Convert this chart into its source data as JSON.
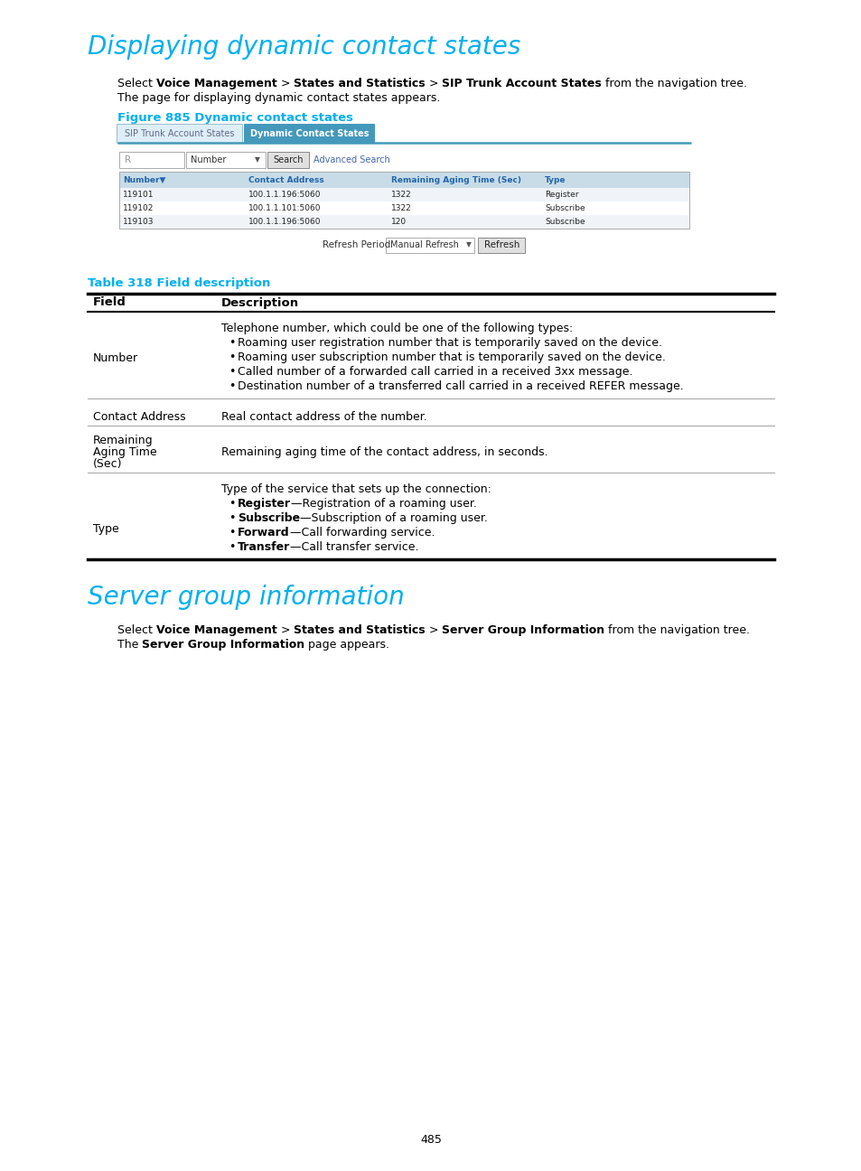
{
  "page_background": "#ffffff",
  "heading1_color": "#00b0f0",
  "heading1_text": "Displaying dynamic contact states",
  "heading1_fontsize": 20,
  "heading2_color": "#00b0f0",
  "heading2_text": "Server group information",
  "heading2_fontsize": 20,
  "figure_label_color": "#00b0f0",
  "figure_label_text": "Figure 885 Dynamic contact states",
  "figure_label_fontsize": 9.5,
  "table_label_color": "#00b0f0",
  "table_label_text": "Table 318 Field description",
  "table_label_fontsize": 9.5,
  "body_fontsize": 9,
  "page_number": "485",
  "cyan_color": "#00b0f0",
  "black": "#000000",
  "tab_inactive_bg": "#ddeef7",
  "tab_inactive_fg": "#666688",
  "tab_active_bg": "#4499bb",
  "tab_active_fg": "#ffffff",
  "tab_line_color": "#4499bb",
  "table_header_bg": "#c8dce8",
  "table_header_fg": "#2266aa",
  "row_alt_bg": "#f0f4f8",
  "row_bg": "#ffffff",
  "screenshot_border": "#aaaaaa",
  "thin_line": "#aaaaaa",
  "thick_line": "#000000",
  "medium_line": "#555555"
}
